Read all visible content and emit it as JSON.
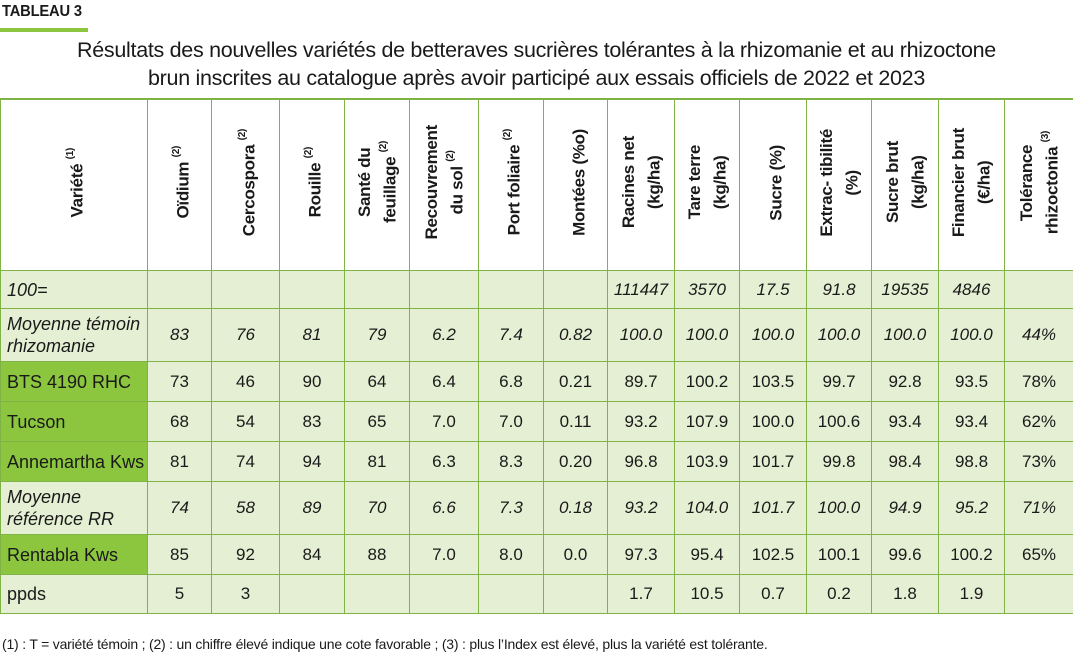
{
  "tag": "TABLEAU 3",
  "title": {
    "line1": "Résultats des nouvelles variétés de betteraves sucrières tolérantes à la rhizomanie et au rhizoctone",
    "line2": "brun inscrites au catalogue  après avoir participé aux essais officiels de 2022 et 2023"
  },
  "columns": [
    {
      "label": "Variété",
      "note": "(1)"
    },
    {
      "label": "Oïdium",
      "note": "(2)"
    },
    {
      "label": "Cercospora",
      "note": "(2)"
    },
    {
      "label": "Rouille",
      "note": "(2)"
    },
    {
      "label": "Santé du\nfeuillage",
      "note": "(2)"
    },
    {
      "label": "Recouvrement\ndu sol",
      "note": "(2)"
    },
    {
      "label": "Port foliaire",
      "note": "(2)"
    },
    {
      "label": "Montées (%o)",
      "note": ""
    },
    {
      "label": "Racines net\n(kg/ha)",
      "note": ""
    },
    {
      "label": "Tare terre\n(kg/ha)",
      "note": ""
    },
    {
      "label": "Sucre (%)",
      "note": ""
    },
    {
      "label": "Extrac- tibilité\n(%)",
      "note": ""
    },
    {
      "label": "Sucre brut\n(kg/ha)",
      "note": ""
    },
    {
      "label": "Financier brut\n(€/ha)",
      "note": ""
    },
    {
      "label": "Tolérance\nrhizoctonia",
      "note": "(3)"
    }
  ],
  "rows": [
    {
      "name": "100=",
      "values": [
        "",
        "",
        "",
        "",
        "",
        "",
        "",
        "111447",
        "3570",
        "17.5",
        "91.8",
        "19535",
        "4846",
        ""
      ]
    },
    {
      "name": "Moyenne témoin rhizomanie",
      "values": [
        "83",
        "76",
        "81",
        "79",
        "6.2",
        "7.4",
        "0.82",
        "100.0",
        "100.0",
        "100.0",
        "100.0",
        "100.0",
        "100.0",
        "44%"
      ]
    },
    {
      "name": "BTS 4190 RHC",
      "values": [
        "73",
        "46",
        "90",
        "64",
        "6.4",
        "6.8",
        "0.21",
        "89.7",
        "100.2",
        "103.5",
        "99.7",
        "92.8",
        "93.5",
        "78%"
      ]
    },
    {
      "name": "Tucson",
      "values": [
        "68",
        "54",
        "83",
        "65",
        "7.0",
        "7.0",
        "0.11",
        "93.2",
        "107.9",
        "100.0",
        "100.6",
        "93.4",
        "93.4",
        "62%"
      ]
    },
    {
      "name": "Annemartha Kws",
      "values": [
        "81",
        "74",
        "94",
        "81",
        "6.3",
        "8.3",
        "0.20",
        "96.8",
        "103.9",
        "101.7",
        "99.8",
        "98.4",
        "98.8",
        "73%"
      ]
    },
    {
      "name": "Moyenne référence RR",
      "values": [
        "74",
        "58",
        "89",
        "70",
        "6.6",
        "7.3",
        "0.18",
        "93.2",
        "104.0",
        "101.7",
        "100.0",
        "94.9",
        "95.2",
        "71%"
      ]
    },
    {
      "name": "Rentabla Kws",
      "values": [
        "85",
        "92",
        "84",
        "88",
        "7.0",
        "8.0",
        "0.0",
        "97.3",
        "95.4",
        "102.5",
        "100.1",
        "99.6",
        "100.2",
        "65%"
      ]
    },
    {
      "name": "ppds",
      "values": [
        "5",
        "3",
        "",
        "",
        "",
        "",
        "",
        "1.7",
        "10.5",
        "0.7",
        "0.2",
        "1.8",
        "1.9",
        ""
      ]
    }
  ],
  "footnote": "(1) : T = variété témoin ; (2) : un chiffre élevé indique une cote favorable ; (3) : plus l’Index est élevé, plus la variété est tolérante.",
  "colors": {
    "accent_green": "#8cc63f",
    "row_bg": "#e5efd3",
    "border": "#7fb346"
  }
}
